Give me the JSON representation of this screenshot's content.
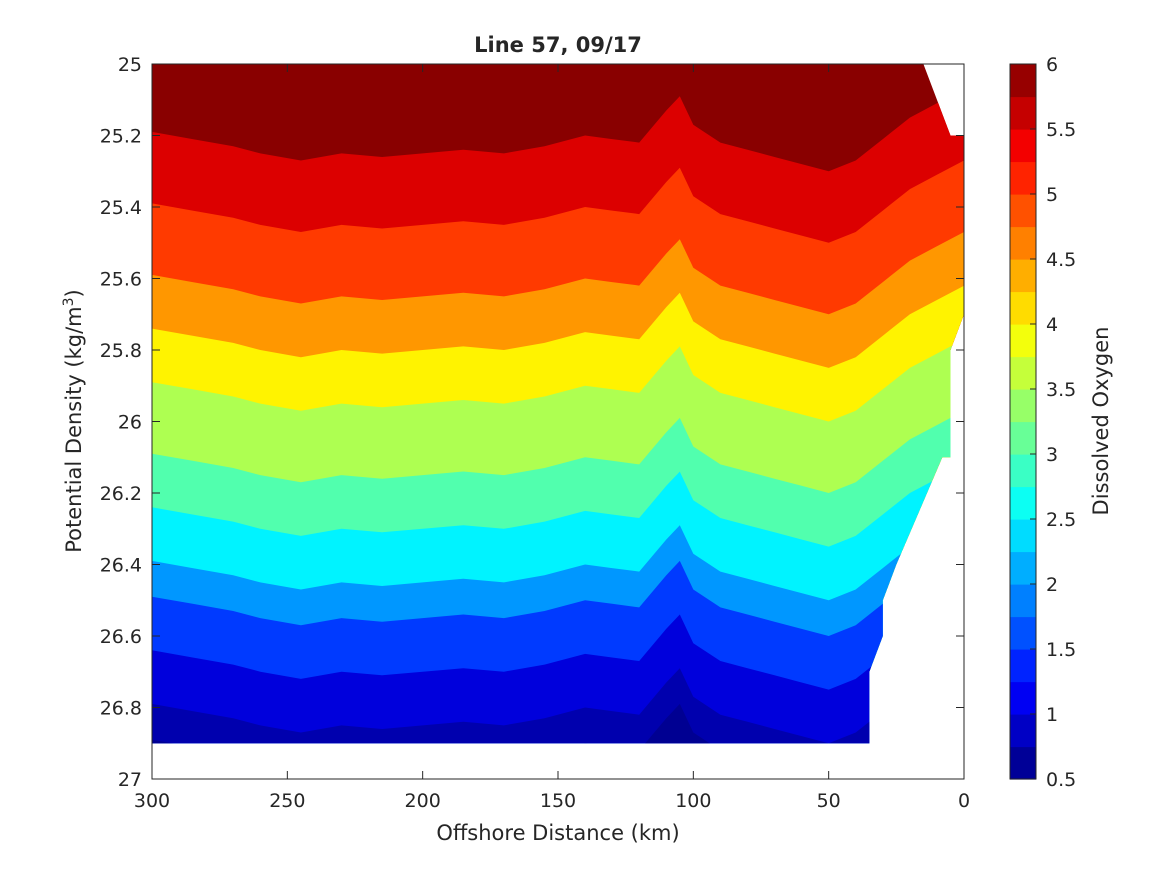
{
  "chart_data": {
    "type": "contourf",
    "title": "Line 57, 09/17",
    "xlabel": "Offshore Distance (km)",
    "ylabel_main": "Potential Density (kg/m",
    "ylabel_sup": "3",
    "ylabel_close": ")",
    "colorbar_label": "Dissolved Oxygen",
    "x_range": [
      300,
      0
    ],
    "x_reversed": true,
    "y_range": [
      25,
      27
    ],
    "y_reversed": true,
    "x_ticks": [
      300,
      250,
      200,
      150,
      100,
      50,
      0
    ],
    "x_tick_labels": [
      "300",
      "250",
      "200",
      "150",
      "100",
      "50",
      "0"
    ],
    "y_ticks": [
      25,
      25.2,
      25.4,
      25.6,
      25.8,
      26,
      26.2,
      26.4,
      26.6,
      26.8,
      27
    ],
    "y_tick_labels": [
      "25",
      "25.2",
      "25.4",
      "25.6",
      "25.8",
      "26",
      "26.2",
      "26.4",
      "26.6",
      "26.8",
      "27"
    ],
    "colorbar_ticks": [
      0.5,
      1,
      1.5,
      2,
      2.5,
      3,
      3.5,
      4,
      4.5,
      5,
      5.5,
      6
    ],
    "colorbar_tick_labels": [
      "0.5",
      "1",
      "1.5",
      "2",
      "2.5",
      "3",
      "3.5",
      "4",
      "4.5",
      "5",
      "5.5",
      "6"
    ],
    "levels": [
      0.5,
      0.75,
      1,
      1.25,
      1.5,
      1.75,
      2,
      2.25,
      2.5,
      2.75,
      3,
      3.25,
      3.5,
      3.75,
      4,
      4.25,
      4.5,
      4.75,
      5,
      5.25,
      5.5,
      5.75,
      6
    ],
    "colormap": "jet",
    "colors": [
      "#00008f",
      "#0000b4",
      "#0000d9",
      "#0000ff",
      "#0024ff",
      "#0049ff",
      "#006dff",
      "#0092ff",
      "#00b6ff",
      "#00dbff",
      "#00ffff",
      "#24ffdb",
      "#49ffb6",
      "#6dff92",
      "#92ff6d",
      "#b6ff49",
      "#dbff24",
      "#ffff00",
      "#ffdb00",
      "#ffb600",
      "#ff9200",
      "#ff6d00",
      "#ff4900",
      "#ff2400",
      "#ff0000",
      "#db0000",
      "#b60000",
      "#920000"
    ],
    "data_extent": [
      [
        300,
        26.9
      ],
      [
        35,
        26.9
      ],
      [
        35,
        26.7
      ],
      [
        30,
        26.6
      ],
      [
        30,
        26.5
      ],
      [
        25,
        26.4
      ],
      [
        8,
        26.1
      ],
      [
        5,
        26.1
      ],
      [
        5,
        25.8
      ],
      [
        0,
        25.7
      ],
      [
        0,
        25.2
      ],
      [
        5,
        25.2
      ],
      [
        15,
        25.0
      ],
      [
        300,
        25.0
      ]
    ],
    "x_profile": [
      300,
      285,
      270,
      260,
      245,
      230,
      215,
      200,
      185,
      170,
      155,
      140,
      130,
      120,
      110,
      105,
      100,
      90,
      80,
      70,
      60,
      50,
      40,
      30,
      20,
      10,
      0
    ],
    "iso_base": [
      [
        25.0,
        5.95
      ],
      [
        25.25,
        5.5
      ],
      [
        25.45,
        5.0
      ],
      [
        25.65,
        4.5
      ],
      [
        25.8,
        4.0
      ],
      [
        25.95,
        3.5
      ],
      [
        26.15,
        3.0
      ],
      [
        26.3,
        2.5
      ],
      [
        26.45,
        2.0
      ],
      [
        26.55,
        1.5
      ],
      [
        26.7,
        1.0
      ],
      [
        26.85,
        0.75
      ],
      [
        26.95,
        0.6
      ]
    ],
    "iso_offset": [
      -0.06,
      -0.04,
      -0.02,
      0.0,
      0.02,
      0.0,
      0.01,
      0.0,
      -0.01,
      0.0,
      -0.02,
      -0.05,
      -0.04,
      -0.03,
      -0.12,
      -0.16,
      -0.08,
      -0.03,
      -0.01,
      0.01,
      0.03,
      0.05,
      0.02,
      -0.04,
      -0.1,
      -0.14,
      -0.18
    ]
  }
}
